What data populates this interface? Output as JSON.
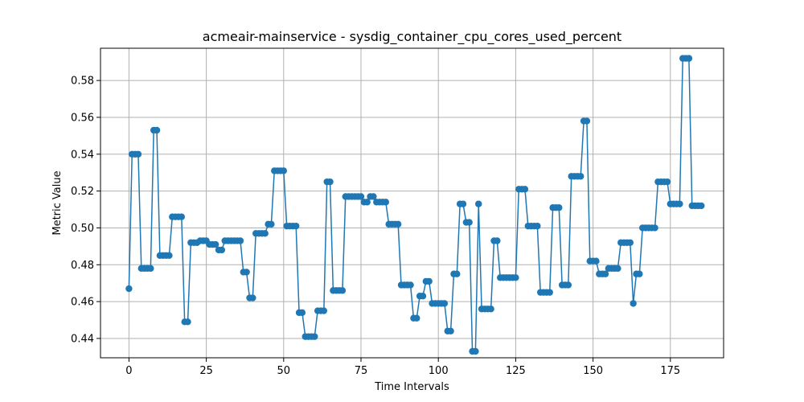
{
  "chart_data": {
    "type": "line",
    "title": "acmeair-mainservice - sysdig_container_cpu_cores_used_percent",
    "xlabel": "Time Intervals",
    "ylabel": "Metric Value",
    "xlim": [
      -9.2,
      192.2
    ],
    "ylim": [
      0.4295,
      0.5975
    ],
    "xticks": [
      0,
      25,
      50,
      75,
      100,
      125,
      150,
      175
    ],
    "yticks": [
      0.44,
      0.46,
      0.48,
      0.5,
      0.52,
      0.54,
      0.56,
      0.58
    ],
    "ytick_labels": [
      "0.44",
      "0.46",
      "0.48",
      "0.50",
      "0.52",
      "0.54",
      "0.56",
      "0.58"
    ],
    "grid": true,
    "marker": "circle",
    "color": "#1f77b4",
    "series": [
      {
        "values": [
          0.467,
          0.54,
          0.54,
          0.54,
          0.478,
          0.478,
          0.478,
          0.478,
          0.553,
          0.553,
          0.485,
          0.485,
          0.485,
          0.485,
          0.506,
          0.506,
          0.506,
          0.506,
          0.449,
          0.449,
          0.492,
          0.492,
          0.492,
          0.493,
          0.493,
          0.493,
          0.491,
          0.491,
          0.491,
          0.488,
          0.488,
          0.493,
          0.493,
          0.493,
          0.493,
          0.493,
          0.493,
          0.476,
          0.476,
          0.462,
          0.462,
          0.497,
          0.497,
          0.497,
          0.497,
          0.502,
          0.502,
          0.531,
          0.531,
          0.531,
          0.531,
          0.501,
          0.501,
          0.501,
          0.501,
          0.454,
          0.454,
          0.441,
          0.441,
          0.441,
          0.441,
          0.455,
          0.455,
          0.455,
          0.525,
          0.525,
          0.466,
          0.466,
          0.466,
          0.466,
          0.517,
          0.517,
          0.517,
          0.517,
          0.517,
          0.517,
          0.514,
          0.514,
          0.517,
          0.517,
          0.514,
          0.514,
          0.514,
          0.514,
          0.502,
          0.502,
          0.502,
          0.502,
          0.469,
          0.469,
          0.469,
          0.469,
          0.451,
          0.451,
          0.463,
          0.463,
          0.471,
          0.471,
          0.459,
          0.459,
          0.459,
          0.459,
          0.459,
          0.444,
          0.444,
          0.475,
          0.475,
          0.513,
          0.513,
          0.503,
          0.503,
          0.433,
          0.433,
          0.513,
          0.456,
          0.456,
          0.456,
          0.456,
          0.493,
          0.493,
          0.473,
          0.473,
          0.473,
          0.473,
          0.473,
          0.473,
          0.521,
          0.521,
          0.521,
          0.501,
          0.501,
          0.501,
          0.501,
          0.465,
          0.465,
          0.465,
          0.465,
          0.511,
          0.511,
          0.511,
          0.469,
          0.469,
          0.469,
          0.528,
          0.528,
          0.528,
          0.528,
          0.558,
          0.558,
          0.482,
          0.482,
          0.482,
          0.475,
          0.475,
          0.475,
          0.478,
          0.478,
          0.478,
          0.478,
          0.492,
          0.492,
          0.492,
          0.492,
          0.459,
          0.475,
          0.475,
          0.5,
          0.5,
          0.5,
          0.5,
          0.5,
          0.525,
          0.525,
          0.525,
          0.525,
          0.513,
          0.513,
          0.513,
          0.513,
          0.592,
          0.592,
          0.592,
          0.512,
          0.512,
          0.512,
          0.512
        ]
      }
    ]
  }
}
